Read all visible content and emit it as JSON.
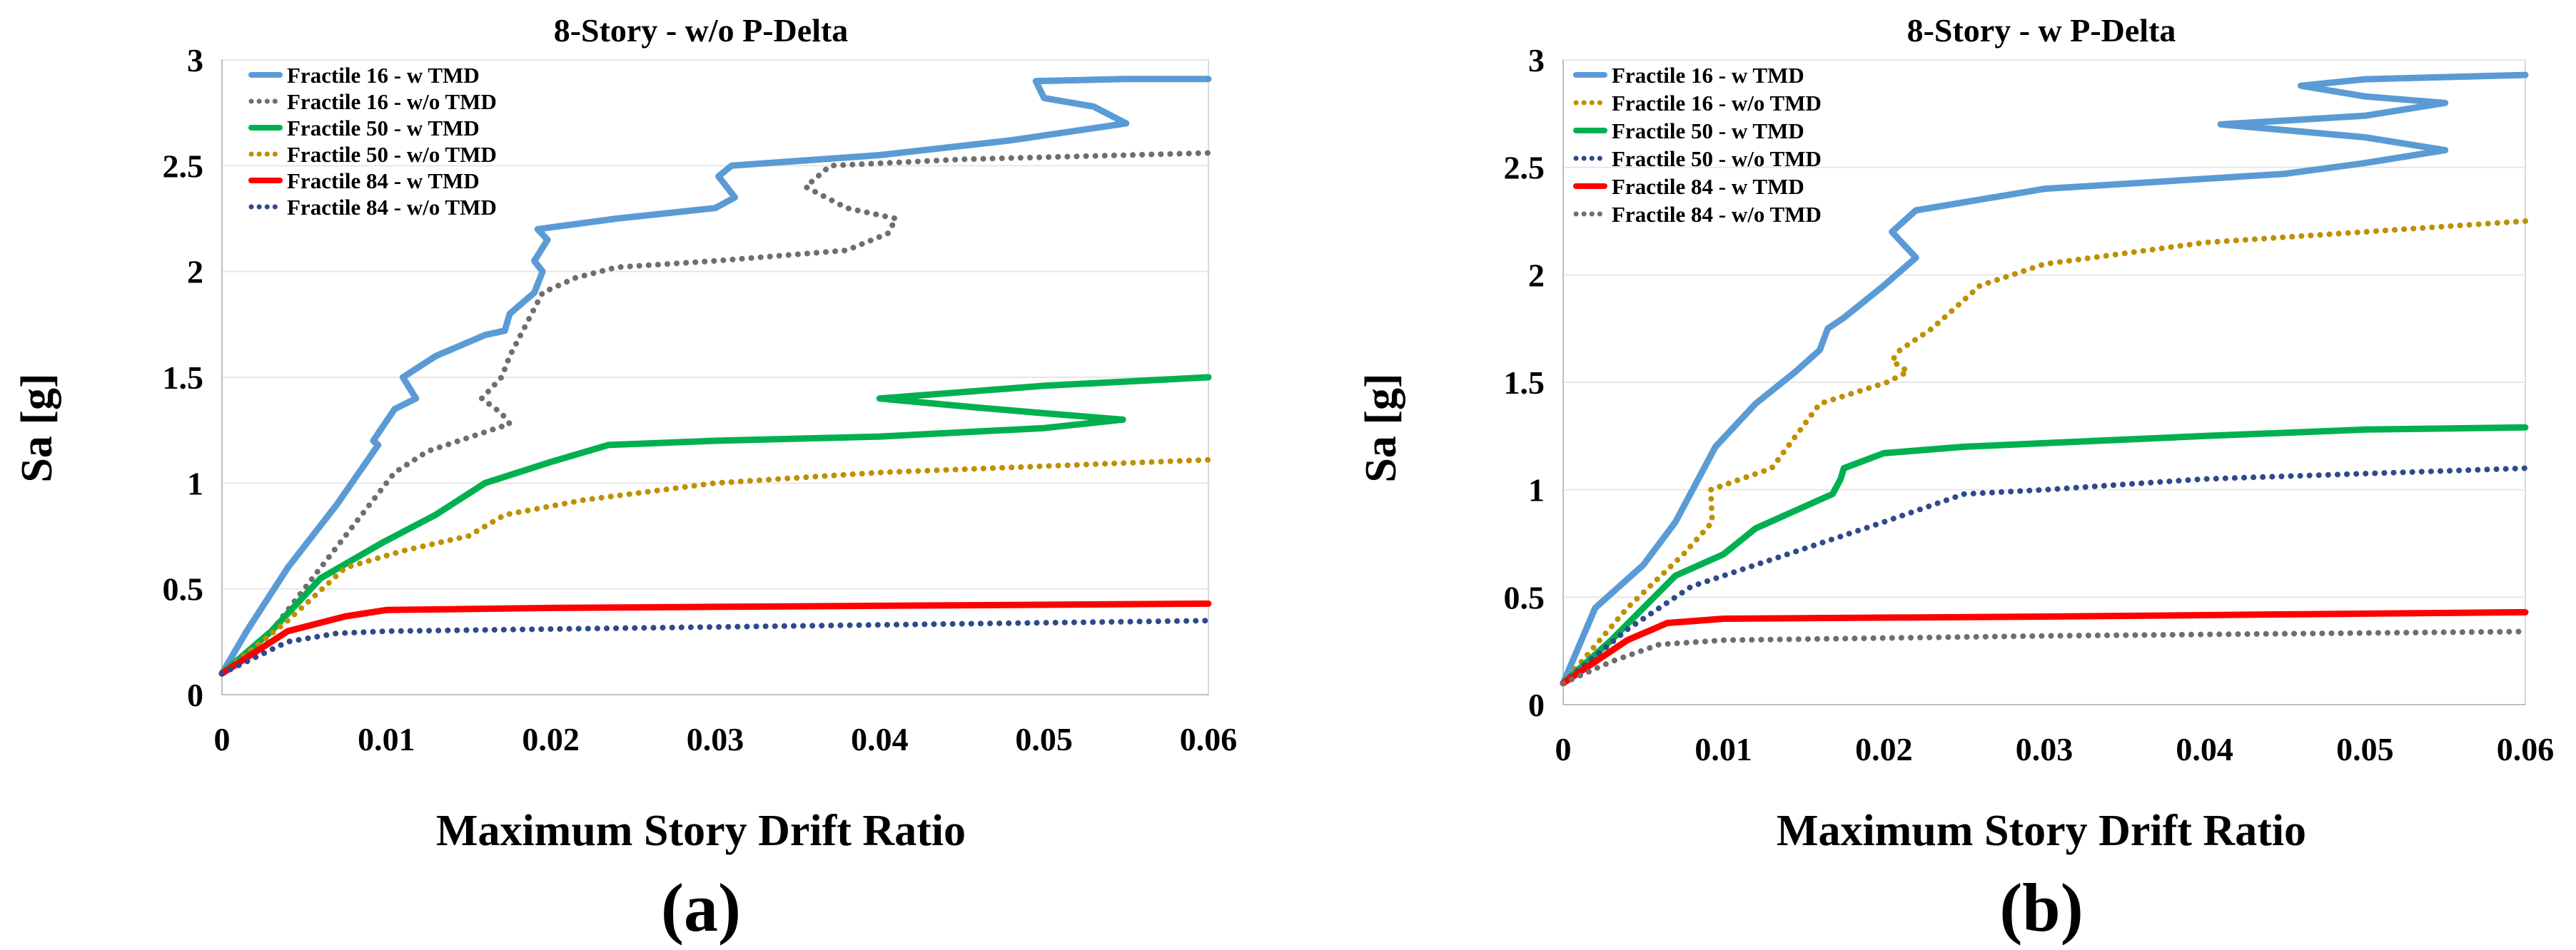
{
  "figure": {
    "panel_labels": [
      "(a)",
      "(b)"
    ]
  },
  "colors": {
    "light_blue": "#5B9BD5",
    "gray": "#6E6E6E",
    "green": "#00B050",
    "gold": "#BF9000",
    "red": "#FF0000",
    "navy": "#2F4A8C"
  },
  "chart_data": [
    {
      "type": "line",
      "title": "8-Story - w/o P-Delta",
      "xlabel": "Maximum Story Drift Ratio",
      "ylabel": "Sa [g]",
      "xlim": [
        0,
        0.06
      ],
      "ylim": [
        0,
        3
      ],
      "xticks": [
        0,
        0.01,
        0.02,
        0.03,
        0.04,
        0.05,
        0.06
      ],
      "xtick_labels": [
        "0",
        "0.01",
        "0.02",
        "0.03",
        "0.04",
        "0.05",
        "0.06"
      ],
      "yticks": [
        0,
        0.5,
        1,
        1.5,
        2,
        2.5,
        3
      ],
      "ytick_labels": [
        "0",
        "0.5",
        "1",
        "1.5",
        "2",
        "2.5",
        "3"
      ],
      "legend_position": "top-left",
      "series": [
        {
          "name": "Fractile 16 - w TMD",
          "color": "#5B9BD5",
          "style": "solid",
          "points": [
            [
              0,
              0.1
            ],
            [
              0.0015,
              0.3
            ],
            [
              0.004,
              0.6
            ],
            [
              0.007,
              0.9
            ],
            [
              0.0095,
              1.18
            ],
            [
              0.0092,
              1.2
            ],
            [
              0.0105,
              1.35
            ],
            [
              0.0118,
              1.4
            ],
            [
              0.011,
              1.5
            ],
            [
              0.013,
              1.6
            ],
            [
              0.016,
              1.7
            ],
            [
              0.0172,
              1.72
            ],
            [
              0.0175,
              1.8
            ],
            [
              0.019,
              1.9
            ],
            [
              0.0195,
              2.0
            ],
            [
              0.019,
              2.05
            ],
            [
              0.0198,
              2.15
            ],
            [
              0.0192,
              2.2
            ],
            [
              0.024,
              2.25
            ],
            [
              0.03,
              2.3
            ],
            [
              0.0312,
              2.35
            ],
            [
              0.0302,
              2.45
            ],
            [
              0.031,
              2.5
            ],
            [
              0.04,
              2.55
            ],
            [
              0.048,
              2.62
            ],
            [
              0.055,
              2.7
            ],
            [
              0.053,
              2.78
            ],
            [
              0.05,
              2.82
            ],
            [
              0.0495,
              2.9
            ],
            [
              0.055,
              2.91
            ],
            [
              0.06,
              2.91
            ]
          ]
        },
        {
          "name": "Fractile 16 - w/o TMD",
          "color": "#6E6E6E",
          "style": "dotted",
          "points": [
            [
              0,
              0.1
            ],
            [
              0.003,
              0.3
            ],
            [
              0.006,
              0.6
            ],
            [
              0.0085,
              0.85
            ],
            [
              0.0105,
              1.05
            ],
            [
              0.0125,
              1.15
            ],
            [
              0.0175,
              1.28
            ],
            [
              0.017,
              1.33
            ],
            [
              0.0158,
              1.4
            ],
            [
              0.017,
              1.5
            ],
            [
              0.0175,
              1.6
            ],
            [
              0.0185,
              1.75
            ],
            [
              0.0195,
              1.9
            ],
            [
              0.0215,
              1.97
            ],
            [
              0.024,
              2.02
            ],
            [
              0.03,
              2.05
            ],
            [
              0.038,
              2.1
            ],
            [
              0.0405,
              2.18
            ],
            [
              0.041,
              2.25
            ],
            [
              0.038,
              2.3
            ],
            [
              0.0355,
              2.4
            ],
            [
              0.037,
              2.5
            ],
            [
              0.045,
              2.53
            ],
            [
              0.06,
              2.56
            ]
          ]
        },
        {
          "name": "Fractile 50 - w TMD",
          "color": "#00B050",
          "style": "solid",
          "points": [
            [
              0,
              0.1
            ],
            [
              0.003,
              0.3
            ],
            [
              0.006,
              0.55
            ],
            [
              0.0098,
              0.72
            ],
            [
              0.013,
              0.85
            ],
            [
              0.016,
              1.0
            ],
            [
              0.02,
              1.1
            ],
            [
              0.0235,
              1.18
            ],
            [
              0.03,
              1.2
            ],
            [
              0.04,
              1.22
            ],
            [
              0.05,
              1.26
            ],
            [
              0.0548,
              1.3
            ],
            [
              0.05,
              1.33
            ],
            [
              0.0455,
              1.36
            ],
            [
              0.04,
              1.4
            ],
            [
              0.045,
              1.43
            ],
            [
              0.05,
              1.46
            ],
            [
              0.06,
              1.5
            ]
          ]
        },
        {
          "name": "Fractile 50 - w/o TMD",
          "color": "#BF9000",
          "style": "dotted",
          "points": [
            [
              0,
              0.1
            ],
            [
              0.004,
              0.35
            ],
            [
              0.0075,
              0.6
            ],
            [
              0.011,
              0.68
            ],
            [
              0.015,
              0.75
            ],
            [
              0.0172,
              0.85
            ],
            [
              0.022,
              0.92
            ],
            [
              0.03,
              1.0
            ],
            [
              0.04,
              1.05
            ],
            [
              0.05,
              1.08
            ],
            [
              0.06,
              1.11
            ]
          ]
        },
        {
          "name": "Fractile 84 - w TMD",
          "color": "#FF0000",
          "style": "solid",
          "points": [
            [
              0,
              0.1
            ],
            [
              0.004,
              0.3
            ],
            [
              0.0075,
              0.37
            ],
            [
              0.01,
              0.4
            ],
            [
              0.02,
              0.41
            ],
            [
              0.04,
              0.42
            ],
            [
              0.06,
              0.43
            ]
          ]
        },
        {
          "name": "Fractile 84 - w/o TMD",
          "color": "#2F4A8C",
          "style": "dotted",
          "points": [
            [
              0,
              0.1
            ],
            [
              0.004,
              0.25
            ],
            [
              0.007,
              0.29
            ],
            [
              0.01,
              0.3
            ],
            [
              0.02,
              0.31
            ],
            [
              0.04,
              0.33
            ],
            [
              0.06,
              0.35
            ]
          ]
        }
      ]
    },
    {
      "type": "line",
      "title": "8-Story - w P-Delta",
      "xlabel": "Maximum Story Drift Ratio",
      "ylabel": "Sa [g]",
      "xlim": [
        0,
        0.06
      ],
      "ylim": [
        0,
        3
      ],
      "xticks": [
        0,
        0.01,
        0.02,
        0.03,
        0.04,
        0.05,
        0.06
      ],
      "xtick_labels": [
        "0",
        "0.01",
        "0.02",
        "0.03",
        "0.04",
        "0.05",
        "0.06"
      ],
      "yticks": [
        0,
        0.5,
        1,
        1.5,
        2,
        2.5,
        3
      ],
      "ytick_labels": [
        "0",
        "0.5",
        "1",
        "1.5",
        "2",
        "2.5",
        "3"
      ],
      "legend_position": "top-left",
      "series": [
        {
          "name": "Fractile 16 - w TMD",
          "color": "#5B9BD5",
          "style": "solid",
          "points": [
            [
              0,
              0.1
            ],
            [
              0.002,
              0.45
            ],
            [
              0.005,
              0.65
            ],
            [
              0.007,
              0.85
            ],
            [
              0.0095,
              1.2
            ],
            [
              0.012,
              1.4
            ],
            [
              0.0145,
              1.55
            ],
            [
              0.016,
              1.65
            ],
            [
              0.0165,
              1.75
            ],
            [
              0.0175,
              1.8
            ],
            [
              0.02,
              1.95
            ],
            [
              0.022,
              2.08
            ],
            [
              0.0205,
              2.2
            ],
            [
              0.022,
              2.3
            ],
            [
              0.03,
              2.4
            ],
            [
              0.045,
              2.47
            ],
            [
              0.05,
              2.52
            ],
            [
              0.055,
              2.58
            ],
            [
              0.05,
              2.64
            ],
            [
              0.041,
              2.7
            ],
            [
              0.05,
              2.74
            ],
            [
              0.055,
              2.8
            ],
            [
              0.05,
              2.83
            ],
            [
              0.046,
              2.88
            ],
            [
              0.05,
              2.91
            ],
            [
              0.06,
              2.93
            ]
          ]
        },
        {
          "name": "Fractile 16 - w/o TMD",
          "color": "#BF9000",
          "style": "dotted",
          "points": [
            [
              0,
              0.1
            ],
            [
              0.004,
              0.45
            ],
            [
              0.0075,
              0.7
            ],
            [
              0.0093,
              0.85
            ],
            [
              0.0092,
              1.0
            ],
            [
              0.013,
              1.1
            ],
            [
              0.016,
              1.4
            ],
            [
              0.0202,
              1.5
            ],
            [
              0.0215,
              1.55
            ],
            [
              0.0205,
              1.6
            ],
            [
              0.021,
              1.65
            ],
            [
              0.023,
              1.75
            ],
            [
              0.026,
              1.95
            ],
            [
              0.03,
              2.05
            ],
            [
              0.04,
              2.15
            ],
            [
              0.05,
              2.2
            ],
            [
              0.06,
              2.25
            ]
          ]
        },
        {
          "name": "Fractile 50 - w TMD",
          "color": "#00B050",
          "style": "solid",
          "points": [
            [
              0,
              0.1
            ],
            [
              0.003,
              0.3
            ],
            [
              0.007,
              0.6
            ],
            [
              0.01,
              0.7
            ],
            [
              0.012,
              0.82
            ],
            [
              0.0168,
              0.98
            ],
            [
              0.0173,
              1.05
            ],
            [
              0.0175,
              1.1
            ],
            [
              0.02,
              1.17
            ],
            [
              0.025,
              1.2
            ],
            [
              0.04,
              1.25
            ],
            [
              0.05,
              1.28
            ],
            [
              0.06,
              1.29
            ]
          ]
        },
        {
          "name": "Fractile 50 - w/o TMD",
          "color": "#2F4A8C",
          "style": "dotted",
          "points": [
            [
              0,
              0.1
            ],
            [
              0.004,
              0.35
            ],
            [
              0.008,
              0.55
            ],
            [
              0.012,
              0.65
            ],
            [
              0.016,
              0.75
            ],
            [
              0.02,
              0.85
            ],
            [
              0.025,
              0.98
            ],
            [
              0.03,
              1.0
            ],
            [
              0.04,
              1.05
            ],
            [
              0.06,
              1.1
            ]
          ]
        },
        {
          "name": "Fractile 84 - w TMD",
          "color": "#FF0000",
          "style": "solid",
          "points": [
            [
              0,
              0.1
            ],
            [
              0.004,
              0.3
            ],
            [
              0.0065,
              0.38
            ],
            [
              0.01,
              0.4
            ],
            [
              0.03,
              0.41
            ],
            [
              0.06,
              0.43
            ]
          ]
        },
        {
          "name": "Fractile 84 - w/o TMD",
          "color": "#6E6E6E",
          "style": "dotted",
          "points": [
            [
              0,
              0.1
            ],
            [
              0.003,
              0.2
            ],
            [
              0.006,
              0.28
            ],
            [
              0.01,
              0.3
            ],
            [
              0.03,
              0.32
            ],
            [
              0.06,
              0.34
            ]
          ]
        }
      ]
    }
  ]
}
